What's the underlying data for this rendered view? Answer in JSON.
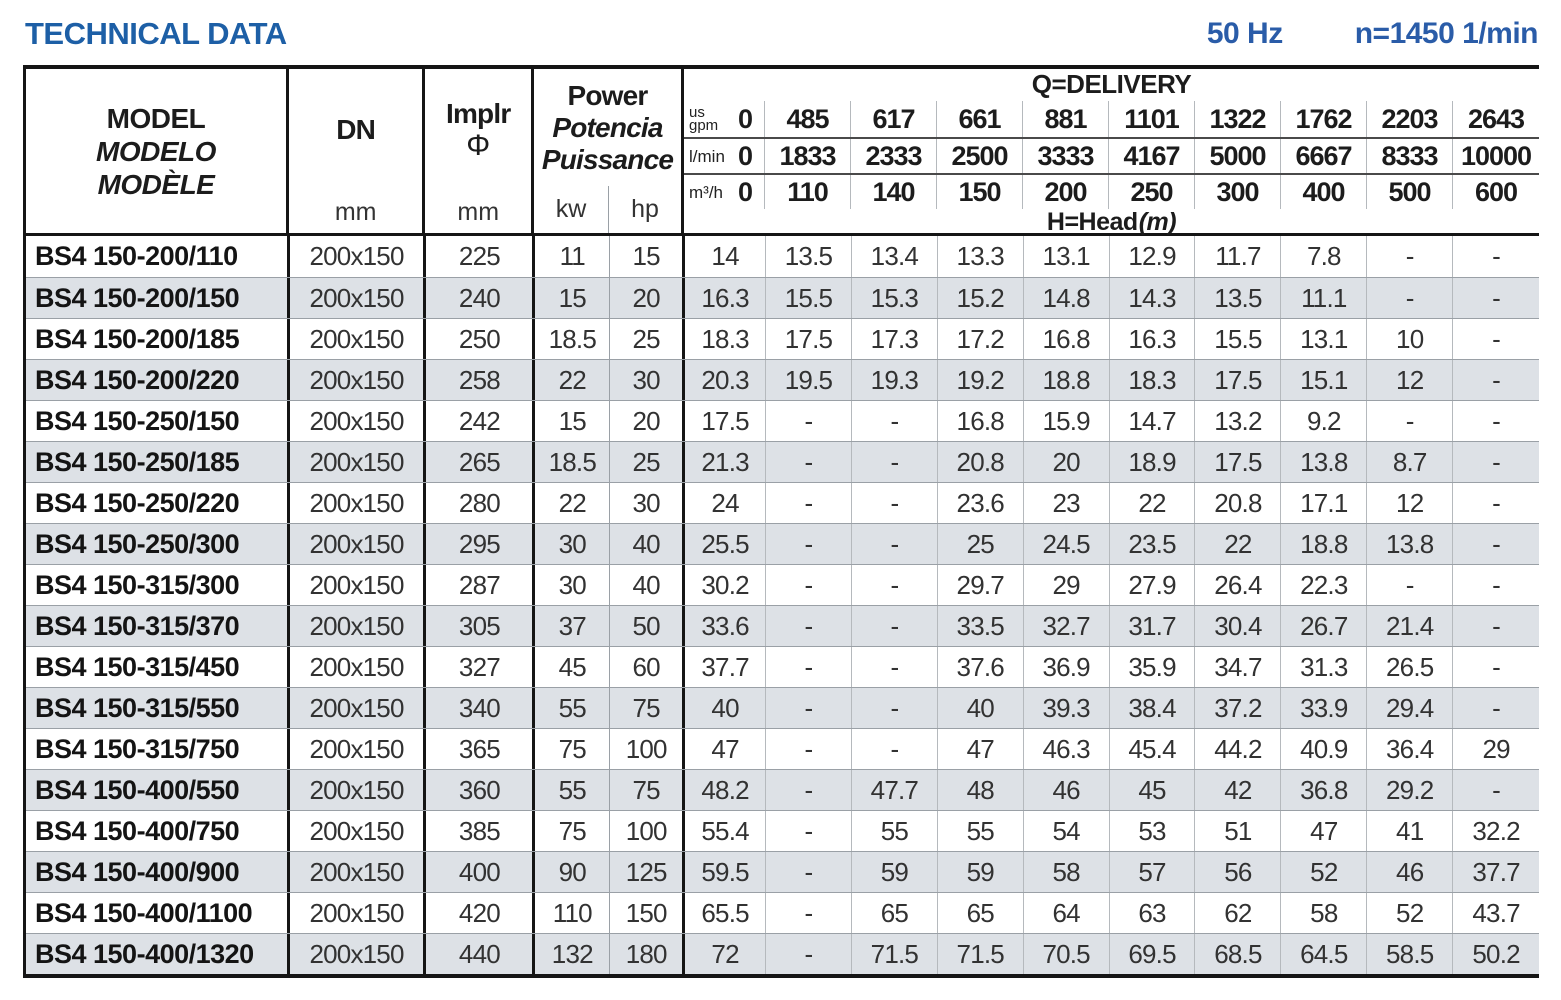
{
  "header": {
    "title": "TECHNICAL DATA",
    "frequency": "50 Hz",
    "speed": "n=1450 1/min"
  },
  "table": {
    "header": {
      "model_lines": [
        "MODEL",
        "MODELO",
        "MODÈLE"
      ],
      "dn_label": "DN",
      "dn_unit": "mm",
      "implr_label": "Implr",
      "implr_symbol": "Φ",
      "implr_unit": "mm",
      "power_lines": [
        "Power",
        "Potencia",
        "Puissance"
      ],
      "power_units": [
        "kw",
        "hp"
      ],
      "delivery_title": "Q=DELIVERY",
      "head_label": "H=Head",
      "head_unit": "(m)",
      "flow_rows": [
        {
          "unit": "us gpm",
          "values": [
            "0",
            "485",
            "617",
            "661",
            "881",
            "1101",
            "1322",
            "1762",
            "2203",
            "2643"
          ]
        },
        {
          "unit": "l/min",
          "values": [
            "0",
            "1833",
            "2333",
            "2500",
            "3333",
            "4167",
            "5000",
            "6667",
            "8333",
            "10000"
          ]
        },
        {
          "unit": "m³/h",
          "values": [
            "0",
            "110",
            "140",
            "150",
            "200",
            "250",
            "300",
            "400",
            "500",
            "600"
          ]
        }
      ]
    },
    "rows": [
      {
        "model": "BS4 150-200/110",
        "dn": "200x150",
        "implr": "225",
        "kw": "11",
        "hp": "15",
        "head": [
          "14",
          "13.5",
          "13.4",
          "13.3",
          "13.1",
          "12.9",
          "11.7",
          "7.8",
          "-",
          "-"
        ]
      },
      {
        "model": "BS4 150-200/150",
        "dn": "200x150",
        "implr": "240",
        "kw": "15",
        "hp": "20",
        "head": [
          "16.3",
          "15.5",
          "15.3",
          "15.2",
          "14.8",
          "14.3",
          "13.5",
          "11.1",
          "-",
          "-"
        ]
      },
      {
        "model": "BS4 150-200/185",
        "dn": "200x150",
        "implr": "250",
        "kw": "18.5",
        "hp": "25",
        "head": [
          "18.3",
          "17.5",
          "17.3",
          "17.2",
          "16.8",
          "16.3",
          "15.5",
          "13.1",
          "10",
          "-"
        ]
      },
      {
        "model": "BS4 150-200/220",
        "dn": "200x150",
        "implr": "258",
        "kw": "22",
        "hp": "30",
        "head": [
          "20.3",
          "19.5",
          "19.3",
          "19.2",
          "18.8",
          "18.3",
          "17.5",
          "15.1",
          "12",
          "-"
        ]
      },
      {
        "model": "BS4 150-250/150",
        "dn": "200x150",
        "implr": "242",
        "kw": "15",
        "hp": "20",
        "head": [
          "17.5",
          "-",
          "-",
          "16.8",
          "15.9",
          "14.7",
          "13.2",
          "9.2",
          "-",
          "-"
        ]
      },
      {
        "model": "BS4 150-250/185",
        "dn": "200x150",
        "implr": "265",
        "kw": "18.5",
        "hp": "25",
        "head": [
          "21.3",
          "-",
          "-",
          "20.8",
          "20",
          "18.9",
          "17.5",
          "13.8",
          "8.7",
          "-"
        ]
      },
      {
        "model": "BS4 150-250/220",
        "dn": "200x150",
        "implr": "280",
        "kw": "22",
        "hp": "30",
        "head": [
          "24",
          "-",
          "-",
          "23.6",
          "23",
          "22",
          "20.8",
          "17.1",
          "12",
          "-"
        ]
      },
      {
        "model": "BS4 150-250/300",
        "dn": "200x150",
        "implr": "295",
        "kw": "30",
        "hp": "40",
        "head": [
          "25.5",
          "-",
          "-",
          "25",
          "24.5",
          "23.5",
          "22",
          "18.8",
          "13.8",
          "-"
        ]
      },
      {
        "model": "BS4 150-315/300",
        "dn": "200x150",
        "implr": "287",
        "kw": "30",
        "hp": "40",
        "head": [
          "30.2",
          "-",
          "-",
          "29.7",
          "29",
          "27.9",
          "26.4",
          "22.3",
          "-",
          "-"
        ]
      },
      {
        "model": "BS4 150-315/370",
        "dn": "200x150",
        "implr": "305",
        "kw": "37",
        "hp": "50",
        "head": [
          "33.6",
          "-",
          "-",
          "33.5",
          "32.7",
          "31.7",
          "30.4",
          "26.7",
          "21.4",
          "-"
        ]
      },
      {
        "model": "BS4 150-315/450",
        "dn": "200x150",
        "implr": "327",
        "kw": "45",
        "hp": "60",
        "head": [
          "37.7",
          "-",
          "-",
          "37.6",
          "36.9",
          "35.9",
          "34.7",
          "31.3",
          "26.5",
          "-"
        ]
      },
      {
        "model": "BS4 150-315/550",
        "dn": "200x150",
        "implr": "340",
        "kw": "55",
        "hp": "75",
        "head": [
          "40",
          "-",
          "-",
          "40",
          "39.3",
          "38.4",
          "37.2",
          "33.9",
          "29.4",
          "-"
        ]
      },
      {
        "model": "BS4 150-315/750",
        "dn": "200x150",
        "implr": "365",
        "kw": "75",
        "hp": "100",
        "head": [
          "47",
          "-",
          "-",
          "47",
          "46.3",
          "45.4",
          "44.2",
          "40.9",
          "36.4",
          "29"
        ]
      },
      {
        "model": "BS4 150-400/550",
        "dn": "200x150",
        "implr": "360",
        "kw": "55",
        "hp": "75",
        "head": [
          "48.2",
          "-",
          "47.7",
          "48",
          "46",
          "45",
          "42",
          "36.8",
          "29.2",
          "-"
        ]
      },
      {
        "model": "BS4 150-400/750",
        "dn": "200x150",
        "implr": "385",
        "kw": "75",
        "hp": "100",
        "head": [
          "55.4",
          "-",
          "55",
          "55",
          "54",
          "53",
          "51",
          "47",
          "41",
          "32.2"
        ]
      },
      {
        "model": "BS4 150-400/900",
        "dn": "200x150",
        "implr": "400",
        "kw": "90",
        "hp": "125",
        "head": [
          "59.5",
          "-",
          "59",
          "59",
          "58",
          "57",
          "56",
          "52",
          "46",
          "37.7"
        ]
      },
      {
        "model": "BS4 150-400/1100",
        "dn": "200x150",
        "implr": "420",
        "kw": "110",
        "hp": "150",
        "head": [
          "65.5",
          "-",
          "65",
          "65",
          "64",
          "63",
          "62",
          "58",
          "52",
          "43.7"
        ]
      },
      {
        "model": "BS4 150-400/1320",
        "dn": "200x150",
        "implr": "440",
        "kw": "132",
        "hp": "180",
        "head": [
          "72",
          "-",
          "71.5",
          "71.5",
          "70.5",
          "69.5",
          "68.5",
          "64.5",
          "58.5",
          "50.2"
        ]
      }
    ],
    "colors": {
      "accent_blue": "#2a5ca8",
      "row_shade": "#dde1e6",
      "border_dark": "#151515"
    }
  }
}
